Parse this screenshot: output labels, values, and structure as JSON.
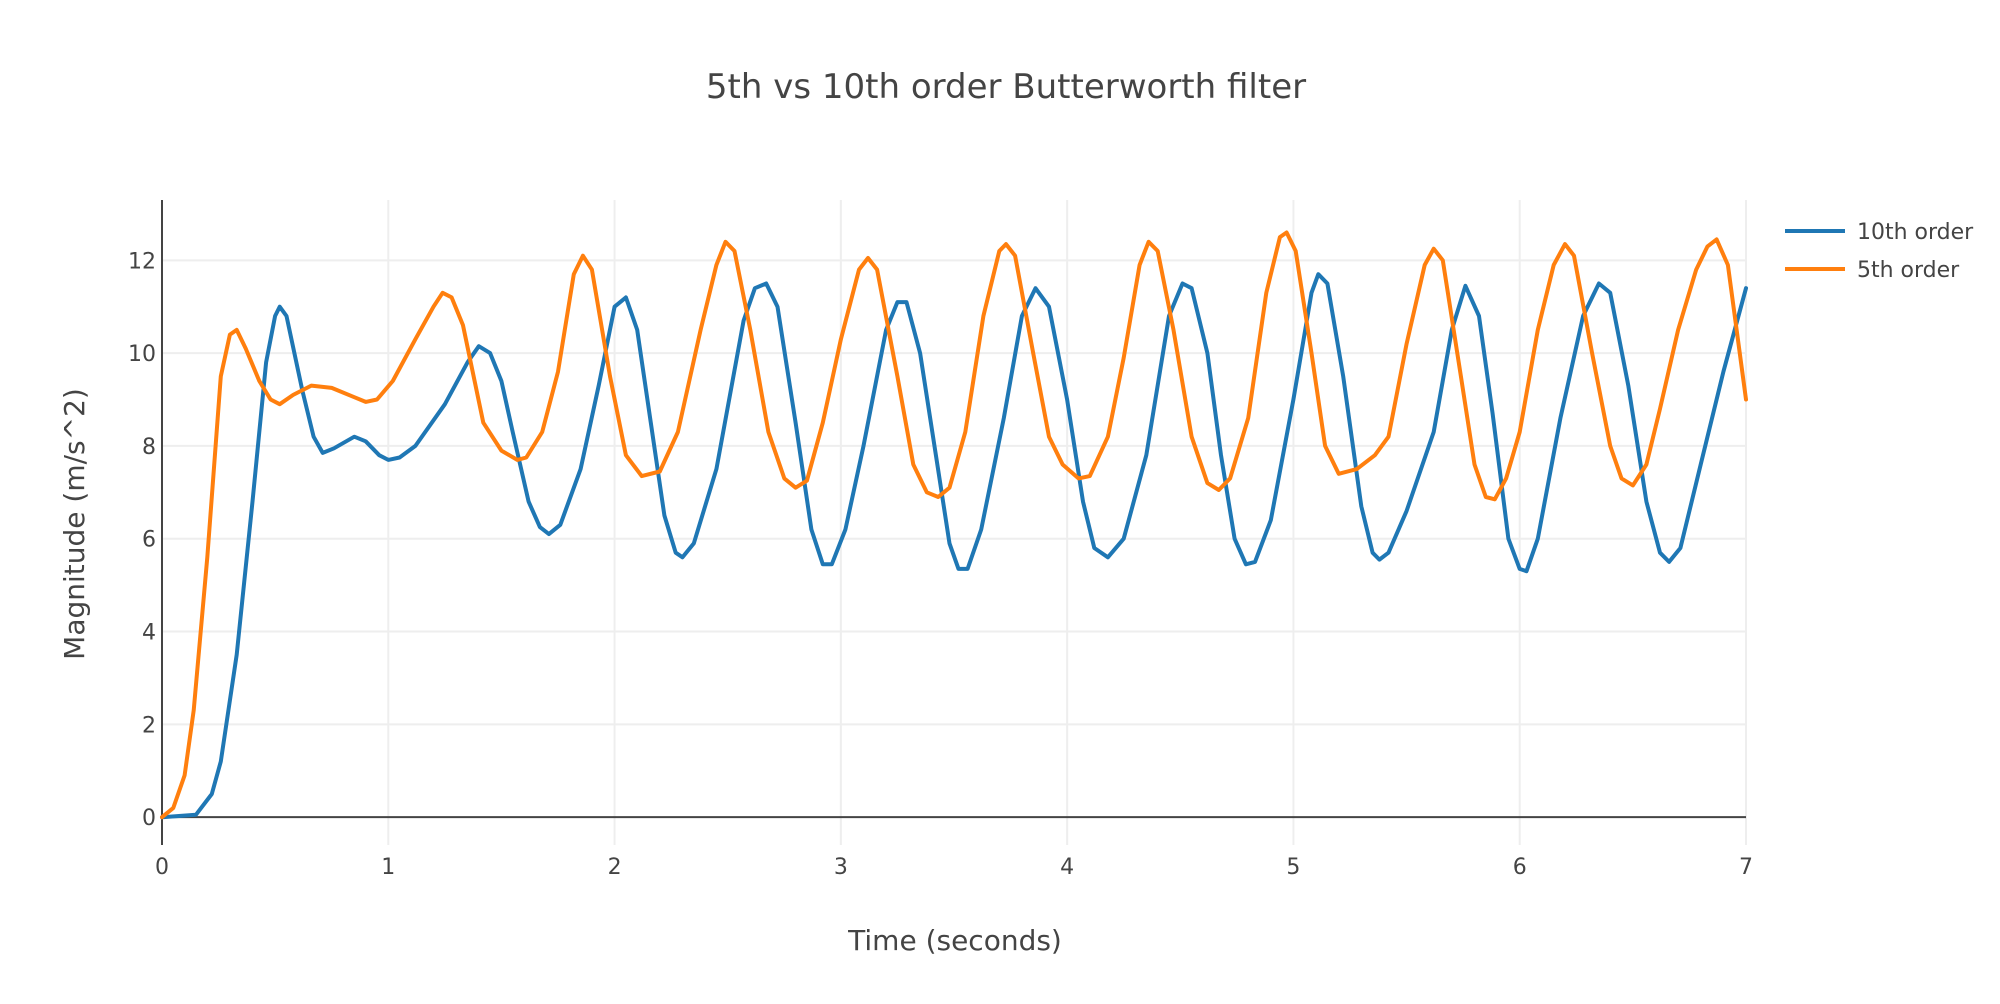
{
  "chart_data": {
    "type": "line",
    "title": "5th vs 10th order Butterworth filter",
    "xlabel": "Time (seconds)",
    "ylabel": "Magnitude (m/s^2)",
    "xlim": [
      0,
      7
    ],
    "ylim": [
      -0.6,
      13.3
    ],
    "x_ticks": [
      "0",
      "1",
      "2",
      "3",
      "4",
      "5",
      "6",
      "7"
    ],
    "y_ticks": [
      "0",
      "2",
      "4",
      "6",
      "8",
      "10",
      "12"
    ],
    "grid": true,
    "legend_position": "top-right",
    "series": [
      {
        "name": "10th order",
        "color": "#1f77b4",
        "points": [
          [
            0.0,
            0.0
          ],
          [
            0.15,
            0.05
          ],
          [
            0.22,
            0.5
          ],
          [
            0.26,
            1.2
          ],
          [
            0.33,
            3.5
          ],
          [
            0.4,
            6.8
          ],
          [
            0.46,
            9.8
          ],
          [
            0.5,
            10.8
          ],
          [
            0.52,
            11.0
          ],
          [
            0.55,
            10.8
          ],
          [
            0.62,
            9.2
          ],
          [
            0.67,
            8.2
          ],
          [
            0.71,
            7.85
          ],
          [
            0.76,
            7.95
          ],
          [
            0.85,
            8.2
          ],
          [
            0.9,
            8.1
          ],
          [
            0.96,
            7.8
          ],
          [
            1.0,
            7.7
          ],
          [
            1.05,
            7.75
          ],
          [
            1.12,
            8.0
          ],
          [
            1.25,
            8.9
          ],
          [
            1.35,
            9.8
          ],
          [
            1.4,
            10.15
          ],
          [
            1.45,
            10.0
          ],
          [
            1.5,
            9.4
          ],
          [
            1.55,
            8.3
          ],
          [
            1.62,
            6.8
          ],
          [
            1.67,
            6.25
          ],
          [
            1.71,
            6.1
          ],
          [
            1.76,
            6.3
          ],
          [
            1.85,
            7.5
          ],
          [
            1.93,
            9.3
          ],
          [
            2.0,
            11.0
          ],
          [
            2.05,
            11.2
          ],
          [
            2.1,
            10.5
          ],
          [
            2.16,
            8.5
          ],
          [
            2.22,
            6.5
          ],
          [
            2.27,
            5.7
          ],
          [
            2.3,
            5.6
          ],
          [
            2.35,
            5.9
          ],
          [
            2.45,
            7.5
          ],
          [
            2.57,
            10.7
          ],
          [
            2.62,
            11.4
          ],
          [
            2.67,
            11.5
          ],
          [
            2.72,
            11.0
          ],
          [
            2.8,
            8.5
          ],
          [
            2.87,
            6.2
          ],
          [
            2.92,
            5.45
          ],
          [
            2.96,
            5.45
          ],
          [
            3.02,
            6.2
          ],
          [
            3.1,
            8.0
          ],
          [
            3.2,
            10.5
          ],
          [
            3.25,
            11.1
          ],
          [
            3.29,
            11.1
          ],
          [
            3.35,
            10.0
          ],
          [
            3.42,
            7.8
          ],
          [
            3.48,
            5.9
          ],
          [
            3.52,
            5.35
          ],
          [
            3.56,
            5.35
          ],
          [
            3.62,
            6.2
          ],
          [
            3.72,
            8.6
          ],
          [
            3.8,
            10.8
          ],
          [
            3.86,
            11.4
          ],
          [
            3.92,
            11.0
          ],
          [
            4.0,
            9.0
          ],
          [
            4.07,
            6.8
          ],
          [
            4.12,
            5.8
          ],
          [
            4.18,
            5.6
          ],
          [
            4.25,
            6.0
          ],
          [
            4.35,
            7.8
          ],
          [
            4.45,
            10.8
          ],
          [
            4.51,
            11.5
          ],
          [
            4.55,
            11.4
          ],
          [
            4.62,
            10.0
          ],
          [
            4.68,
            7.8
          ],
          [
            4.74,
            6.0
          ],
          [
            4.79,
            5.45
          ],
          [
            4.83,
            5.5
          ],
          [
            4.9,
            6.4
          ],
          [
            5.0,
            9.0
          ],
          [
            5.08,
            11.3
          ],
          [
            5.11,
            11.7
          ],
          [
            5.15,
            11.5
          ],
          [
            5.22,
            9.5
          ],
          [
            5.3,
            6.7
          ],
          [
            5.35,
            5.7
          ],
          [
            5.38,
            5.55
          ],
          [
            5.42,
            5.7
          ],
          [
            5.5,
            6.6
          ],
          [
            5.62,
            8.3
          ],
          [
            5.7,
            10.5
          ],
          [
            5.76,
            11.45
          ],
          [
            5.82,
            10.8
          ],
          [
            5.88,
            8.7
          ],
          [
            5.95,
            6.0
          ],
          [
            6.0,
            5.35
          ],
          [
            6.03,
            5.3
          ],
          [
            6.08,
            6.0
          ],
          [
            6.18,
            8.6
          ],
          [
            6.28,
            10.8
          ],
          [
            6.35,
            11.5
          ],
          [
            6.4,
            11.3
          ],
          [
            6.48,
            9.3
          ],
          [
            6.56,
            6.8
          ],
          [
            6.62,
            5.7
          ],
          [
            6.66,
            5.5
          ],
          [
            6.71,
            5.8
          ],
          [
            6.8,
            7.6
          ],
          [
            6.9,
            9.6
          ],
          [
            7.0,
            11.4
          ]
        ]
      },
      {
        "name": "5th order",
        "color": "#ff7f0e",
        "points": [
          [
            0.0,
            0.0
          ],
          [
            0.05,
            0.2
          ],
          [
            0.1,
            0.9
          ],
          [
            0.14,
            2.3
          ],
          [
            0.2,
            5.6
          ],
          [
            0.26,
            9.5
          ],
          [
            0.3,
            10.4
          ],
          [
            0.33,
            10.5
          ],
          [
            0.37,
            10.1
          ],
          [
            0.43,
            9.4
          ],
          [
            0.48,
            9.0
          ],
          [
            0.52,
            8.9
          ],
          [
            0.58,
            9.1
          ],
          [
            0.66,
            9.3
          ],
          [
            0.75,
            9.25
          ],
          [
            0.85,
            9.05
          ],
          [
            0.9,
            8.95
          ],
          [
            0.95,
            9.0
          ],
          [
            1.02,
            9.4
          ],
          [
            1.12,
            10.3
          ],
          [
            1.2,
            11.0
          ],
          [
            1.24,
            11.3
          ],
          [
            1.28,
            11.2
          ],
          [
            1.33,
            10.6
          ],
          [
            1.42,
            8.5
          ],
          [
            1.5,
            7.9
          ],
          [
            1.57,
            7.7
          ],
          [
            1.61,
            7.75
          ],
          [
            1.68,
            8.3
          ],
          [
            1.75,
            9.6
          ],
          [
            1.82,
            11.7
          ],
          [
            1.86,
            12.1
          ],
          [
            1.9,
            11.8
          ],
          [
            1.98,
            9.5
          ],
          [
            2.05,
            7.8
          ],
          [
            2.12,
            7.35
          ],
          [
            2.2,
            7.45
          ],
          [
            2.28,
            8.3
          ],
          [
            2.38,
            10.5
          ],
          [
            2.45,
            11.9
          ],
          [
            2.49,
            12.4
          ],
          [
            2.53,
            12.2
          ],
          [
            2.6,
            10.5
          ],
          [
            2.68,
            8.3
          ],
          [
            2.75,
            7.3
          ],
          [
            2.8,
            7.1
          ],
          [
            2.85,
            7.25
          ],
          [
            2.92,
            8.5
          ],
          [
            3.0,
            10.3
          ],
          [
            3.08,
            11.8
          ],
          [
            3.12,
            12.05
          ],
          [
            3.16,
            11.8
          ],
          [
            3.25,
            9.5
          ],
          [
            3.32,
            7.6
          ],
          [
            3.38,
            7.0
          ],
          [
            3.43,
            6.9
          ],
          [
            3.48,
            7.1
          ],
          [
            3.55,
            8.3
          ],
          [
            3.63,
            10.8
          ],
          [
            3.7,
            12.2
          ],
          [
            3.73,
            12.35
          ],
          [
            3.77,
            12.1
          ],
          [
            3.85,
            10.0
          ],
          [
            3.92,
            8.2
          ],
          [
            3.98,
            7.6
          ],
          [
            4.05,
            7.3
          ],
          [
            4.1,
            7.35
          ],
          [
            4.18,
            8.2
          ],
          [
            4.25,
            9.9
          ],
          [
            4.32,
            11.9
          ],
          [
            4.36,
            12.4
          ],
          [
            4.4,
            12.2
          ],
          [
            4.47,
            10.5
          ],
          [
            4.55,
            8.2
          ],
          [
            4.62,
            7.2
          ],
          [
            4.67,
            7.05
          ],
          [
            4.72,
            7.3
          ],
          [
            4.8,
            8.6
          ],
          [
            4.88,
            11.3
          ],
          [
            4.94,
            12.5
          ],
          [
            4.97,
            12.6
          ],
          [
            5.01,
            12.2
          ],
          [
            5.08,
            10.0
          ],
          [
            5.14,
            8.0
          ],
          [
            5.2,
            7.4
          ],
          [
            5.28,
            7.5
          ],
          [
            5.36,
            7.8
          ],
          [
            5.42,
            8.2
          ],
          [
            5.5,
            10.2
          ],
          [
            5.58,
            11.9
          ],
          [
            5.62,
            12.25
          ],
          [
            5.66,
            12.0
          ],
          [
            5.74,
            9.5
          ],
          [
            5.8,
            7.6
          ],
          [
            5.85,
            6.9
          ],
          [
            5.89,
            6.85
          ],
          [
            5.94,
            7.3
          ],
          [
            6.0,
            8.3
          ],
          [
            6.08,
            10.5
          ],
          [
            6.15,
            11.9
          ],
          [
            6.2,
            12.35
          ],
          [
            6.24,
            12.1
          ],
          [
            6.32,
            10.0
          ],
          [
            6.4,
            8.0
          ],
          [
            6.45,
            7.3
          ],
          [
            6.5,
            7.15
          ],
          [
            6.56,
            7.6
          ],
          [
            6.62,
            8.8
          ],
          [
            6.7,
            10.5
          ],
          [
            6.78,
            11.8
          ],
          [
            6.83,
            12.3
          ],
          [
            6.87,
            12.45
          ],
          [
            6.92,
            11.9
          ],
          [
            7.0,
            9.0
          ]
        ]
      }
    ]
  }
}
